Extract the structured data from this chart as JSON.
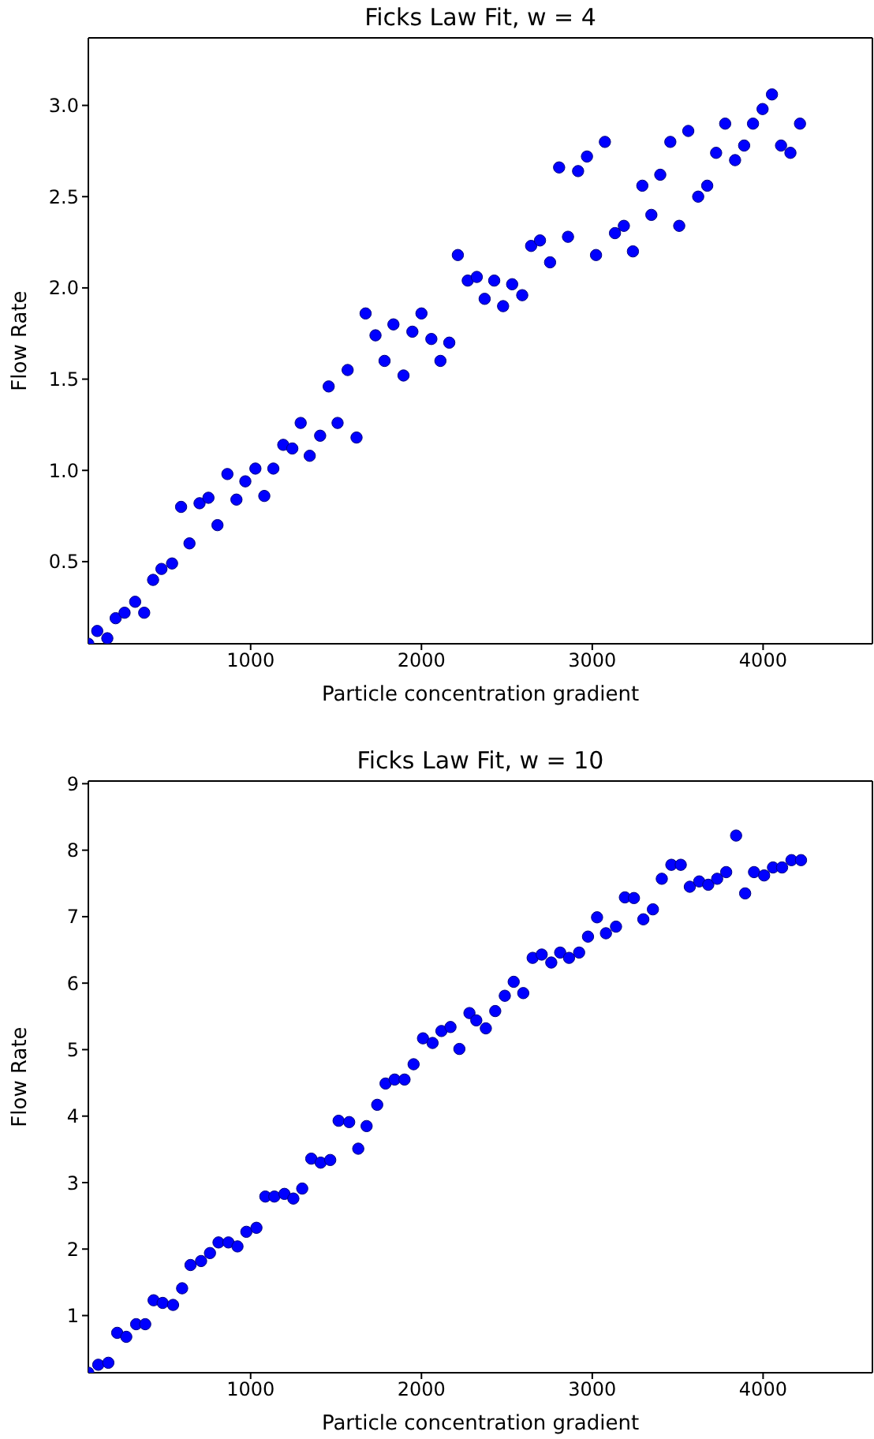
{
  "chart_data": [
    {
      "type": "scatter",
      "title": "Ficks Law Fit, w = 4",
      "xlabel": "Particle concentration gradient",
      "ylabel": "Flow Rate",
      "marker": "circle",
      "xlim": [
        50,
        4640
      ],
      "ylim": [
        0.05,
        3.37
      ],
      "xticks": [
        1000,
        2000,
        3000,
        4000
      ],
      "yticks": [
        0.5,
        {
          "value": 1,
          "label": "1.0"
        },
        1.5,
        {
          "value": 2,
          "label": "2.0"
        },
        2.5,
        {
          "value": 3,
          "label": "3.0"
        }
      ],
      "series": [
        {
          "color": "#0000ff",
          "x": [
            50,
            102,
            161,
            210,
            262,
            324,
            377,
            429,
            478,
            540,
            593,
            642,
            701,
            753,
            806,
            864,
            917,
            969,
            1028,
            1080,
            1133,
            1191,
            1244,
            1293,
            1346,
            1407,
            1457,
            1509,
            1568,
            1620,
            1673,
            1731,
            1784,
            1836,
            1895,
            1947,
            2000,
            2058,
            2111,
            2163,
            2213,
            2271,
            2324,
            2370,
            2426,
            2478,
            2531,
            2590,
            2642,
            2694,
            2753,
            2806,
            2858,
            2917,
            2969,
            3022,
            3074,
            3133,
            3185,
            3238,
            3293,
            3346,
            3398,
            3457,
            3509,
            3562,
            3620,
            3673,
            3725,
            3778,
            3836,
            3889,
            3941,
            3997,
            4052,
            4105,
            4160,
            4216
          ],
          "values": [
            0.05,
            0.12,
            0.08,
            0.19,
            0.22,
            0.28,
            0.22,
            0.4,
            0.46,
            0.49,
            0.8,
            0.6,
            0.82,
            0.85,
            0.7,
            0.98,
            0.84,
            0.94,
            1.01,
            0.86,
            1.01,
            1.14,
            1.12,
            1.26,
            1.08,
            1.19,
            1.46,
            1.26,
            1.55,
            1.18,
            1.86,
            1.74,
            1.6,
            1.8,
            1.52,
            1.76,
            1.86,
            1.72,
            1.6,
            1.7,
            2.18,
            2.04,
            2.06,
            1.94,
            2.04,
            1.9,
            2.02,
            1.96,
            2.23,
            2.26,
            2.14,
            2.66,
            2.28,
            2.64,
            2.72,
            2.18,
            2.8,
            2.3,
            2.34,
            2.2,
            2.56,
            2.4,
            2.62,
            2.8,
            2.34,
            2.86,
            2.5,
            2.56,
            2.74,
            2.9,
            2.7,
            2.78,
            2.9,
            2.98,
            3.06,
            2.78,
            2.74,
            2.9
          ]
        }
      ]
    },
    {
      "type": "scatter",
      "title": "Ficks Law Fit, w = 10",
      "xlabel": "Particle concentration gradient",
      "ylabel": "Flow Rate",
      "marker": "circle",
      "xlim": [
        50,
        4640
      ],
      "ylim": [
        0.14,
        9.04
      ],
      "xticks": [
        1000,
        2000,
        3000,
        4000
      ],
      "yticks": [
        1,
        2,
        3,
        4,
        5,
        6,
        7,
        8,
        9
      ],
      "series": [
        {
          "color": "#0000ff",
          "x": [
            50,
            108,
            167,
            219,
            272,
            330,
            383,
            432,
            485,
            546,
            599,
            648,
            710,
            762,
            812,
            870,
            923,
            975,
            1034,
            1086,
            1139,
            1198,
            1250,
            1302,
            1355,
            1410,
            1466,
            1515,
            1577,
            1630,
            1679,
            1741,
            1790,
            1843,
            1901,
            1954,
            2009,
            2065,
            2117,
            2170,
            2222,
            2281,
            2321,
            2377,
            2432,
            2488,
            2540,
            2596,
            2651,
            2704,
            2760,
            2812,
            2864,
            2923,
            2975,
            3028,
            3080,
            3139,
            3191,
            3244,
            3299,
            3355,
            3407,
            3463,
            3518,
            3571,
            3626,
            3679,
            3731,
            3784,
            3842,
            3895,
            3947,
            4006,
            4058,
            4111,
            4166,
            4222
          ],
          "values": [
            0.14,
            0.26,
            0.29,
            0.74,
            0.68,
            0.87,
            0.87,
            1.23,
            1.19,
            1.16,
            1.41,
            1.76,
            1.82,
            1.94,
            2.1,
            2.1,
            2.04,
            2.26,
            2.32,
            2.79,
            2.79,
            2.83,
            2.76,
            2.91,
            3.36,
            3.3,
            3.34,
            3.93,
            3.91,
            3.51,
            3.85,
            4.17,
            4.49,
            4.55,
            4.55,
            4.78,
            5.17,
            5.1,
            5.28,
            5.34,
            5.01,
            5.55,
            5.44,
            5.32,
            5.58,
            5.81,
            6.02,
            5.85,
            6.38,
            6.43,
            6.31,
            6.46,
            6.38,
            6.46,
            6.7,
            6.99,
            6.75,
            6.85,
            7.29,
            7.28,
            6.96,
            7.11,
            7.57,
            7.78,
            7.78,
            7.45,
            7.53,
            7.48,
            7.57,
            7.67,
            8.22,
            7.35,
            7.67,
            7.62,
            7.74,
            7.74,
            7.85,
            7.85
          ]
        }
      ]
    }
  ]
}
